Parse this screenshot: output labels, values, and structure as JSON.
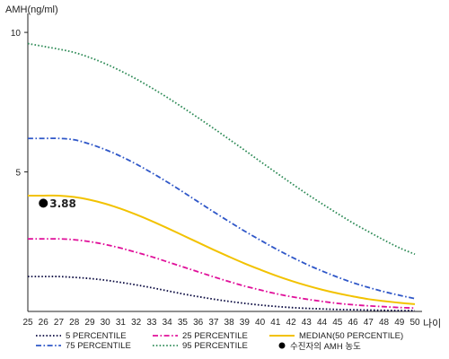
{
  "chart_data": {
    "type": "line",
    "title": "",
    "ylabel": "AMH(ng/ml)",
    "xlabel": "나이",
    "xlim": [
      25,
      50
    ],
    "ylim": [
      0,
      11
    ],
    "x_ticks": [
      25,
      26,
      27,
      28,
      29,
      30,
      31,
      32,
      33,
      34,
      35,
      36,
      37,
      38,
      39,
      40,
      41,
      42,
      43,
      44,
      45,
      46,
      47,
      48,
      49,
      50
    ],
    "y_ticks": [
      5,
      10
    ],
    "grid": false,
    "legend_position": "bottom",
    "x": [
      25,
      26,
      27,
      28,
      29,
      30,
      31,
      32,
      33,
      34,
      35,
      36,
      37,
      38,
      39,
      40,
      41,
      42,
      43,
      44,
      45,
      46,
      47,
      48,
      49,
      50
    ],
    "series": [
      {
        "name": "5 PERCENTILE",
        "color": "#0a0a40",
        "style": "dotted",
        "values": [
          1.25,
          1.25,
          1.25,
          1.22,
          1.18,
          1.12,
          1.04,
          0.95,
          0.85,
          0.74,
          0.63,
          0.53,
          0.44,
          0.36,
          0.29,
          0.23,
          0.18,
          0.14,
          0.11,
          0.09,
          0.07,
          0.06,
          0.05,
          0.04,
          0.03,
          0.03
        ]
      },
      {
        "name": "25 PERCENTILE",
        "color": "#e0109a",
        "style": "dashdot",
        "values": [
          2.6,
          2.6,
          2.6,
          2.57,
          2.5,
          2.4,
          2.27,
          2.12,
          1.96,
          1.78,
          1.6,
          1.42,
          1.24,
          1.07,
          0.91,
          0.77,
          0.64,
          0.53,
          0.44,
          0.36,
          0.29,
          0.24,
          0.2,
          0.17,
          0.14,
          0.12
        ]
      },
      {
        "name": "MEDIAN(50 PERCENTILE)",
        "color": "#f2c200",
        "style": "solid",
        "values": [
          4.15,
          4.15,
          4.15,
          4.1,
          4.0,
          3.86,
          3.68,
          3.47,
          3.24,
          2.99,
          2.73,
          2.47,
          2.21,
          1.96,
          1.72,
          1.5,
          1.29,
          1.1,
          0.93,
          0.78,
          0.65,
          0.54,
          0.44,
          0.37,
          0.31,
          0.26
        ]
      },
      {
        "name": "75 PERCENTILE",
        "color": "#2f57c8",
        "style": "dashdot",
        "values": [
          6.2,
          6.2,
          6.2,
          6.15,
          6.0,
          5.8,
          5.56,
          5.28,
          4.97,
          4.64,
          4.29,
          3.93,
          3.57,
          3.22,
          2.88,
          2.56,
          2.25,
          1.96,
          1.69,
          1.45,
          1.23,
          1.03,
          0.86,
          0.71,
          0.58,
          0.46
        ]
      },
      {
        "name": "95 PERCENTILE",
        "color": "#2e8b57",
        "style": "dotted",
        "values": [
          9.6,
          9.5,
          9.4,
          9.28,
          9.1,
          8.88,
          8.62,
          8.33,
          8.01,
          7.67,
          7.31,
          6.94,
          6.56,
          6.17,
          5.78,
          5.38,
          4.99,
          4.6,
          4.22,
          3.86,
          3.51,
          3.17,
          2.86,
          2.56,
          2.28,
          2.05
        ]
      }
    ],
    "points": [
      {
        "name": "수진자의 AMH 농도",
        "x": 26,
        "y": 3.88,
        "label": "3.88",
        "color": "#000000"
      }
    ]
  }
}
